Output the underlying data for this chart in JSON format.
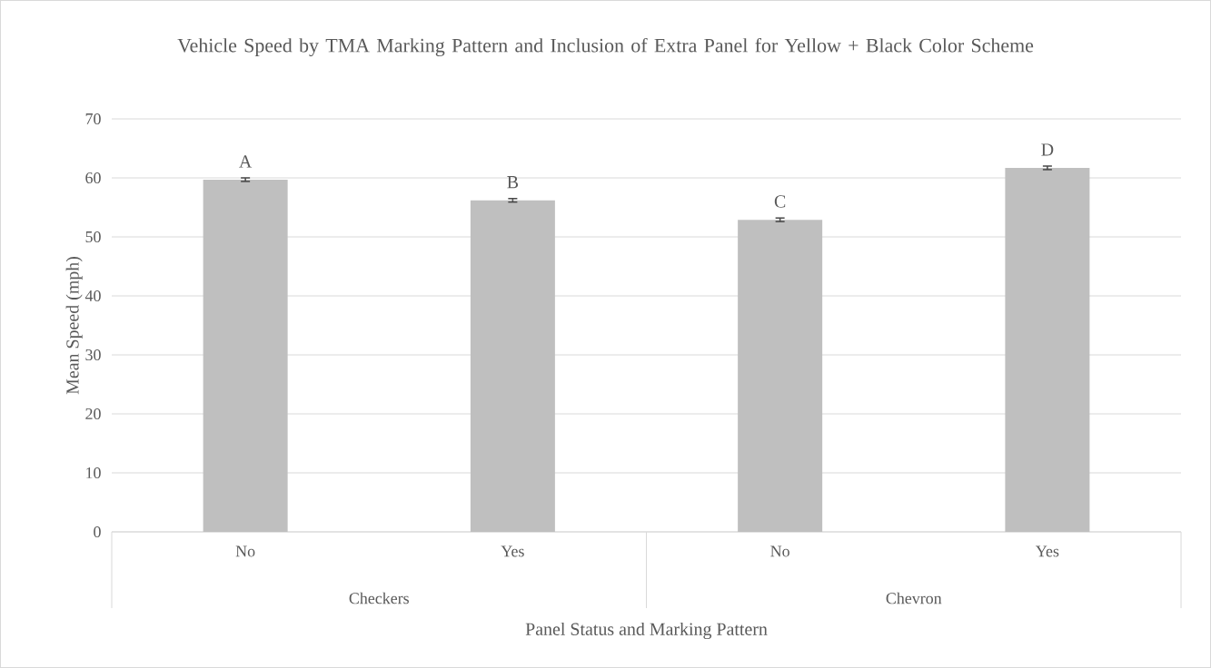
{
  "chart_data": {
    "type": "bar",
    "title": "Vehicle Speed by TMA Marking Pattern and Inclusion of Extra Panel for Yellow + Black Color Scheme",
    "xlabel": "Panel Status and Marking Pattern",
    "ylabel": "Mean Speed (mph)",
    "categories": [
      "No",
      "Yes",
      "No",
      "Yes"
    ],
    "values": [
      59.7,
      56.2,
      52.9,
      61.7
    ],
    "errors": [
      0.3,
      0.3,
      0.3,
      0.3
    ],
    "color": "#bfbfbf",
    "value_labels": [
      "A",
      "B",
      "C",
      "D"
    ],
    "annotations": [
      "Checkers",
      "Chevron"
    ],
    "ylim": [
      0,
      70
    ],
    "yticks": [
      0,
      10,
      20,
      30,
      40,
      50,
      60,
      70
    ],
    "grid": "y"
  }
}
